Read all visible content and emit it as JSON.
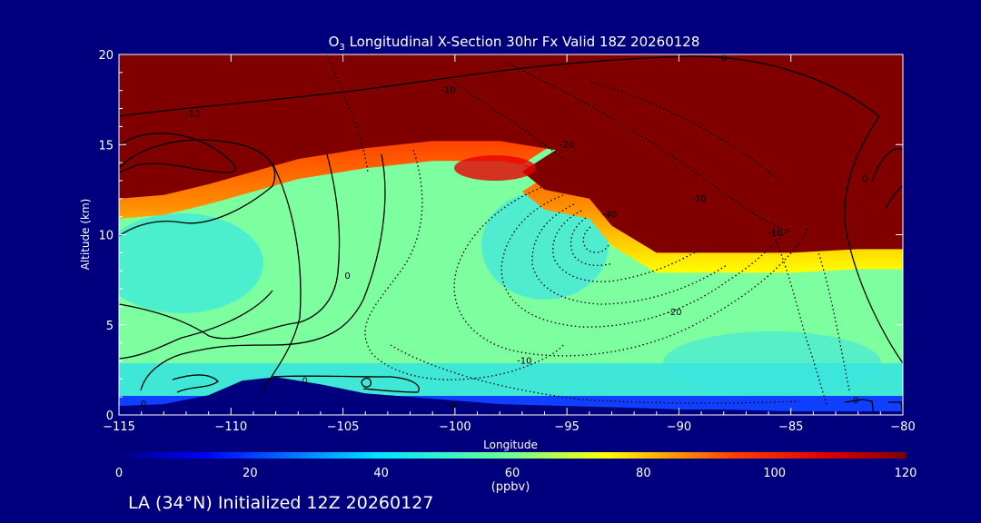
{
  "chart_data": {
    "type": "heatmap",
    "title": "O3 Longitudinal X-Section 30hr  Fx Valid 18Z 20260128",
    "title_parts": {
      "pre": "O",
      "sub": "3",
      "post": " Longitudinal X-Section 30hr  Fx Valid 18Z 20260128"
    },
    "xlabel": "Longitude",
    "ylabel": "Altitude (km)",
    "xlim": [
      -115,
      -80
    ],
    "ylim": [
      0,
      20
    ],
    "x_ticks": [
      -115,
      -110,
      -105,
      -100,
      -95,
      -90,
      -85,
      -80
    ],
    "x_tick_labels": [
      "−115",
      "−110",
      "−105",
      "−100",
      "−95",
      "−90",
      "−85",
      "−80"
    ],
    "y_ticks": [
      0,
      5,
      10,
      15,
      20
    ],
    "y_tick_labels": [
      "0",
      "5",
      "10",
      "15",
      "20"
    ],
    "colorbar": {
      "min": 0,
      "max": 120,
      "ticks": [
        0,
        20,
        40,
        60,
        80,
        100,
        120
      ],
      "tick_labels": [
        "0",
        "20",
        "40",
        "60",
        "80",
        "100",
        "120"
      ],
      "unit": "(ppbv)"
    },
    "tropopause_km": [
      [
        -115,
        12.0
      ],
      [
        -113,
        12.2
      ],
      [
        -111,
        12.8
      ],
      [
        -109,
        13.5
      ],
      [
        -107,
        14.2
      ],
      [
        -104,
        14.8
      ],
      [
        -101,
        15.2
      ],
      [
        -98,
        15.2
      ],
      [
        -95.5,
        14.7
      ],
      [
        -97,
        13.5
      ],
      [
        -96,
        12.5
      ],
      [
        -94,
        12.0
      ],
      [
        -93,
        10.5
      ],
      [
        -91,
        9.0
      ],
      [
        -88,
        9.0
      ],
      [
        -85,
        9.0
      ],
      [
        -82,
        9.2
      ],
      [
        -80,
        9.2
      ]
    ],
    "terrain_km": [
      [
        -115,
        0.5
      ],
      [
        -113,
        0.6
      ],
      [
        -111,
        1.1
      ],
      [
        -109.5,
        1.9
      ],
      [
        -108,
        2.1
      ],
      [
        -106,
        1.7
      ],
      [
        -104,
        1.2
      ],
      [
        -102,
        1.0
      ],
      [
        -100,
        0.8
      ],
      [
        -98,
        0.6
      ],
      [
        -95,
        0.5
      ],
      [
        -92,
        0.4
      ],
      [
        -90,
        0.3
      ],
      [
        -88,
        0.3
      ],
      [
        -85,
        0.2
      ],
      [
        -82,
        0.2
      ],
      [
        -80,
        0.2
      ]
    ],
    "contour_labels": [
      {
        "text": "-10",
        "x": -100.3,
        "y": 18.0
      },
      {
        "text": "0",
        "x": -88,
        "y": 19.8
      },
      {
        "text": "-10",
        "x": -111.7,
        "y": 16.7
      },
      {
        "text": "-20",
        "x": -95,
        "y": 15.0
      },
      {
        "text": "-30",
        "x": -89.1,
        "y": 12.0
      },
      {
        "text": "-40",
        "x": -93.1,
        "y": 11.1
      },
      {
        "text": "-10",
        "x": -85.7,
        "y": 10.1
      },
      {
        "text": "0",
        "x": -81.7,
        "y": 13.1
      },
      {
        "text": "0",
        "x": -104.8,
        "y": 7.7
      },
      {
        "text": "-20",
        "x": -90.2,
        "y": 5.7
      },
      {
        "text": "-10",
        "x": -96.9,
        "y": 3.0
      },
      {
        "text": "0",
        "x": -106.7,
        "y": 1.9
      },
      {
        "text": "0",
        "x": -113.9,
        "y": 0.6
      },
      {
        "text": "0",
        "x": -100.1,
        "y": 0.5
      },
      {
        "text": "0",
        "x": -82.1,
        "y": 0.8
      }
    ]
  },
  "footer": {
    "text": "LA (34°N) Initialized 12Z 20260127"
  }
}
